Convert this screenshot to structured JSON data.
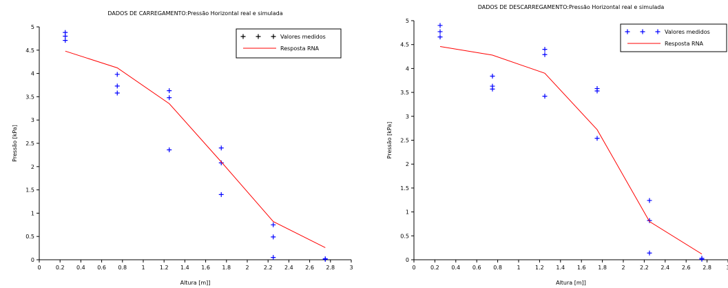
{
  "chart_data": [
    {
      "type": "scatter",
      "title": "DADOS DE CARREGAMENTO:Pressão Horizontal real e simulada",
      "xlabel": "Altura [m]]",
      "ylabel": "Pressão [kPa]",
      "xlim": [
        0,
        3
      ],
      "ylim": [
        0,
        5
      ],
      "xticks": [
        "0",
        "0.2",
        "0.4",
        "0.6",
        "0.8",
        "1",
        "1.2",
        "1.4",
        "1.6",
        "1.8",
        "2",
        "2.2",
        "2.4",
        "2.6",
        "2.8",
        "3"
      ],
      "yticks": [
        "0",
        "0.5",
        "1",
        "1.5",
        "2",
        "2.5",
        "3",
        "3.5",
        "4",
        "4.5",
        "5"
      ],
      "legend_position": "top-right",
      "series": [
        {
          "name": "Valores medidos",
          "kind": "markers",
          "marker": "+",
          "color": "#0000ff",
          "points": [
            [
              0.25,
              4.88
            ],
            [
              0.25,
              4.8
            ],
            [
              0.25,
              4.71
            ],
            [
              0.75,
              3.98
            ],
            [
              0.75,
              3.73
            ],
            [
              0.75,
              3.58
            ],
            [
              1.25,
              3.63
            ],
            [
              1.25,
              3.48
            ],
            [
              1.25,
              2.36
            ],
            [
              1.75,
              2.4
            ],
            [
              1.75,
              2.08
            ],
            [
              1.75,
              1.4
            ],
            [
              2.25,
              0.75
            ],
            [
              2.25,
              0.49
            ],
            [
              2.25,
              0.05
            ],
            [
              2.75,
              0.02
            ],
            [
              2.75,
              0.01
            ]
          ]
        },
        {
          "name": "Resposta RNA",
          "kind": "line",
          "color": "#ff0000",
          "points": [
            [
              0.25,
              4.48
            ],
            [
              0.75,
              4.12
            ],
            [
              1.25,
              3.35
            ],
            [
              1.75,
              2.1
            ],
            [
              2.25,
              0.82
            ],
            [
              2.75,
              0.26
            ]
          ]
        }
      ]
    },
    {
      "type": "scatter",
      "title": "DADOS DE DESCARREGAMENTO:Pressão Horizontal real e simulada",
      "xlabel": "Altura [m]]",
      "ylabel": "Pressão [kPa]",
      "xlim": [
        0,
        3
      ],
      "ylim": [
        0,
        5
      ],
      "xticks": [
        "0",
        "0.2",
        "0.4",
        "0.6",
        "0.8",
        "1",
        "1.2",
        "1.4",
        "1.6",
        "1.8",
        "2",
        "2.2",
        "2.4",
        "2.6",
        "2.8",
        "3"
      ],
      "yticks": [
        "0",
        "0.5",
        "1",
        "1.5",
        "2",
        "2.5",
        "3",
        "3.5",
        "4",
        "4.5",
        "5"
      ],
      "legend_position": "top-right",
      "series": [
        {
          "name": "Valores medidos",
          "kind": "markers",
          "marker": "+",
          "color": "#0000ff",
          "points": [
            [
              0.25,
              4.9
            ],
            [
              0.25,
              4.77
            ],
            [
              0.25,
              4.66
            ],
            [
              0.75,
              3.84
            ],
            [
              0.75,
              3.63
            ],
            [
              0.75,
              3.57
            ],
            [
              1.25,
              4.4
            ],
            [
              1.25,
              4.29
            ],
            [
              1.25,
              3.42
            ],
            [
              1.75,
              3.58
            ],
            [
              1.75,
              3.53
            ],
            [
              1.75,
              2.54
            ],
            [
              2.25,
              1.24
            ],
            [
              2.25,
              0.82
            ],
            [
              2.25,
              0.14
            ],
            [
              2.75,
              0.03
            ],
            [
              2.75,
              0.01
            ]
          ]
        },
        {
          "name": "Resposta RNA",
          "kind": "line",
          "color": "#ff0000",
          "points": [
            [
              0.25,
              4.46
            ],
            [
              0.75,
              4.28
            ],
            [
              1.25,
              3.9
            ],
            [
              1.75,
              2.72
            ],
            [
              2.25,
              0.8
            ],
            [
              2.75,
              0.12
            ]
          ]
        }
      ]
    }
  ]
}
